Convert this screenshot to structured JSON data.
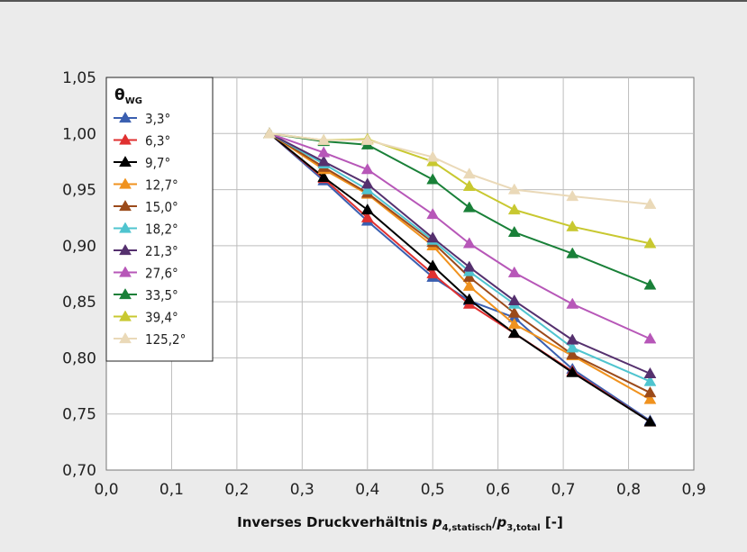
{
  "chart_data": {
    "type": "line",
    "xlabel": {
      "prefix": "Inverses Druckverhältnis ",
      "p4": "p",
      "p4_sub": "4,statisch",
      "slash": "/",
      "p3": "p",
      "p3_sub": "3,total",
      "unit": " [-]"
    },
    "ylabel": "",
    "xlim": [
      0.0,
      0.9
    ],
    "ylim": [
      0.7,
      1.05
    ],
    "x_ticks": [
      0.0,
      0.1,
      0.2,
      0.3,
      0.4,
      0.5,
      0.6,
      0.7,
      0.8,
      0.9
    ],
    "y_ticks": [
      0.7,
      0.75,
      0.8,
      0.85,
      0.9,
      0.95,
      1.0,
      1.05
    ],
    "x_tick_labels": [
      "0,0",
      "0,1",
      "0,2",
      "0,3",
      "0,4",
      "0,5",
      "0,6",
      "0,7",
      "0,8",
      "0,9"
    ],
    "y_tick_labels": [
      "0,70",
      "0,75",
      "0,80",
      "0,85",
      "0,90",
      "0,95",
      "1,00",
      "1,05"
    ],
    "grid": true,
    "legend": {
      "placement": "top-left",
      "title_main": "θ",
      "title_sub": "WG"
    },
    "x": [
      0.25,
      0.333,
      0.4,
      0.5,
      0.556,
      0.625,
      0.714,
      0.833
    ],
    "series": [
      {
        "name": "3,3°",
        "color": "#3a5fb0",
        "values": [
          1.0,
          0.958,
          0.922,
          0.872,
          0.851,
          0.836,
          0.79,
          0.744
        ]
      },
      {
        "name": "6,3°",
        "color": "#e03030",
        "values": [
          1.0,
          0.96,
          0.925,
          0.875,
          0.848,
          0.822,
          0.788,
          0.743
        ]
      },
      {
        "name": "9,7°",
        "color": "#000000",
        "values": [
          1.0,
          0.961,
          0.932,
          0.882,
          0.852,
          0.822,
          0.787,
          0.743
        ]
      },
      {
        "name": "12,7°",
        "color": "#f0921e",
        "values": [
          1.0,
          0.968,
          0.946,
          0.9,
          0.864,
          0.83,
          0.802,
          0.763
        ]
      },
      {
        "name": "15,0°",
        "color": "#9b4a1a",
        "values": [
          1.0,
          0.97,
          0.947,
          0.903,
          0.872,
          0.84,
          0.803,
          0.769
        ]
      },
      {
        "name": "18,2°",
        "color": "#4fc4cf",
        "values": [
          1.0,
          0.973,
          0.95,
          0.905,
          0.877,
          0.848,
          0.809,
          0.779
        ]
      },
      {
        "name": "21,3°",
        "color": "#55306e",
        "values": [
          1.0,
          0.975,
          0.955,
          0.907,
          0.881,
          0.851,
          0.816,
          0.786
        ]
      },
      {
        "name": "27,6°",
        "color": "#b757b8",
        "values": [
          1.0,
          0.983,
          0.968,
          0.928,
          0.902,
          0.876,
          0.848,
          0.817
        ]
      },
      {
        "name": "33,5°",
        "color": "#198038",
        "values": [
          1.0,
          0.993,
          0.99,
          0.959,
          0.934,
          0.912,
          0.893,
          0.865
        ]
      },
      {
        "name": "39,4°",
        "color": "#c8c830",
        "values": [
          1.0,
          0.994,
          0.995,
          0.975,
          0.953,
          0.932,
          0.917,
          0.902
        ]
      },
      {
        "name": "125,2°",
        "color": "#ead9b8",
        "values": [
          1.0,
          0.994,
          0.994,
          0.979,
          0.964,
          0.95,
          0.944,
          0.937
        ]
      }
    ]
  }
}
